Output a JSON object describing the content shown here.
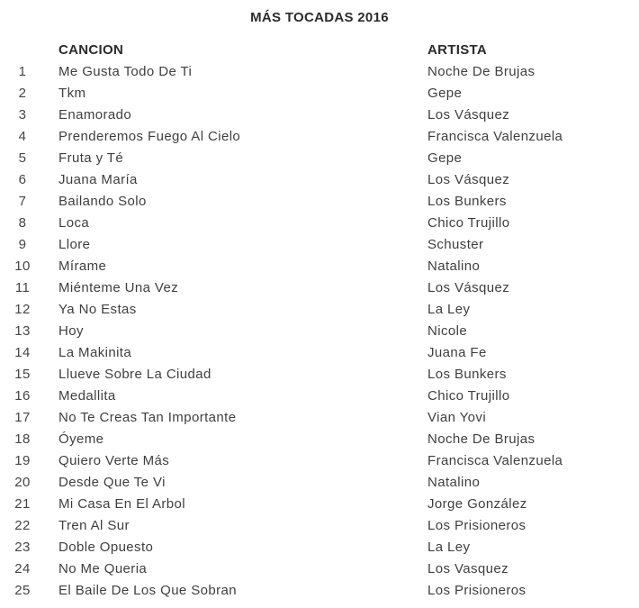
{
  "page": {
    "title": "MÁS TOCADAS 2016"
  },
  "table": {
    "headers": {
      "song": "CANCION",
      "artist": "ARTISTA"
    },
    "rows": [
      {
        "rank": "1",
        "song": "Me Gusta Todo De Ti",
        "artist": "Noche De Brujas"
      },
      {
        "rank": "2",
        "song": "Tkm",
        "artist": "Gepe"
      },
      {
        "rank": "3",
        "song": "Enamorado",
        "artist": "Los Vásquez"
      },
      {
        "rank": "4",
        "song": "Prenderemos Fuego Al Cielo",
        "artist": "Francisca Valenzuela"
      },
      {
        "rank": "5",
        "song": "Fruta y Té",
        "artist": "Gepe"
      },
      {
        "rank": "6",
        "song": "Juana María",
        "artist": "Los Vásquez"
      },
      {
        "rank": "7",
        "song": "Bailando Solo",
        "artist": "Los Bunkers"
      },
      {
        "rank": "8",
        "song": "Loca",
        "artist": "Chico Trujillo"
      },
      {
        "rank": "9",
        "song": "Llore",
        "artist": "Schuster"
      },
      {
        "rank": "10",
        "song": "Mírame",
        "artist": "Natalino"
      },
      {
        "rank": "11",
        "song": "Miénteme Una Vez",
        "artist": "Los Vásquez"
      },
      {
        "rank": "12",
        "song": "Ya No Estas",
        "artist": "La Ley"
      },
      {
        "rank": "13",
        "song": "Hoy",
        "artist": "Nicole"
      },
      {
        "rank": "14",
        "song": "La Makinita",
        "artist": "Juana Fe"
      },
      {
        "rank": "15",
        "song": "Llueve Sobre La Ciudad",
        "artist": "Los Bunkers"
      },
      {
        "rank": "16",
        "song": "Medallita",
        "artist": "Chico Trujillo"
      },
      {
        "rank": "17",
        "song": "No Te Creas Tan Importante",
        "artist": "Vian Yovi"
      },
      {
        "rank": "18",
        "song": "Óyeme",
        "artist": "Noche De Brujas"
      },
      {
        "rank": "19",
        "song": "Quiero Verte Más",
        "artist": "Francisca Valenzuela"
      },
      {
        "rank": "20",
        "song": "Desde Que Te Vi",
        "artist": "Natalino"
      },
      {
        "rank": "21",
        "song": "Mi Casa En El Arbol",
        "artist": "Jorge González"
      },
      {
        "rank": "22",
        "song": "Tren Al Sur",
        "artist": "Los Prisioneros"
      },
      {
        "rank": "23",
        "song": "Doble Opuesto",
        "artist": "La Ley"
      },
      {
        "rank": "24",
        "song": "No Me Queria",
        "artist": "Los Vasquez"
      },
      {
        "rank": "25",
        "song": "El Baile De Los Que Sobran",
        "artist": "Los Prisioneros"
      }
    ]
  },
  "colors": {
    "background": "#ffffff",
    "heading_text": "#2b2b2b",
    "body_text": "#3f3f3f"
  }
}
